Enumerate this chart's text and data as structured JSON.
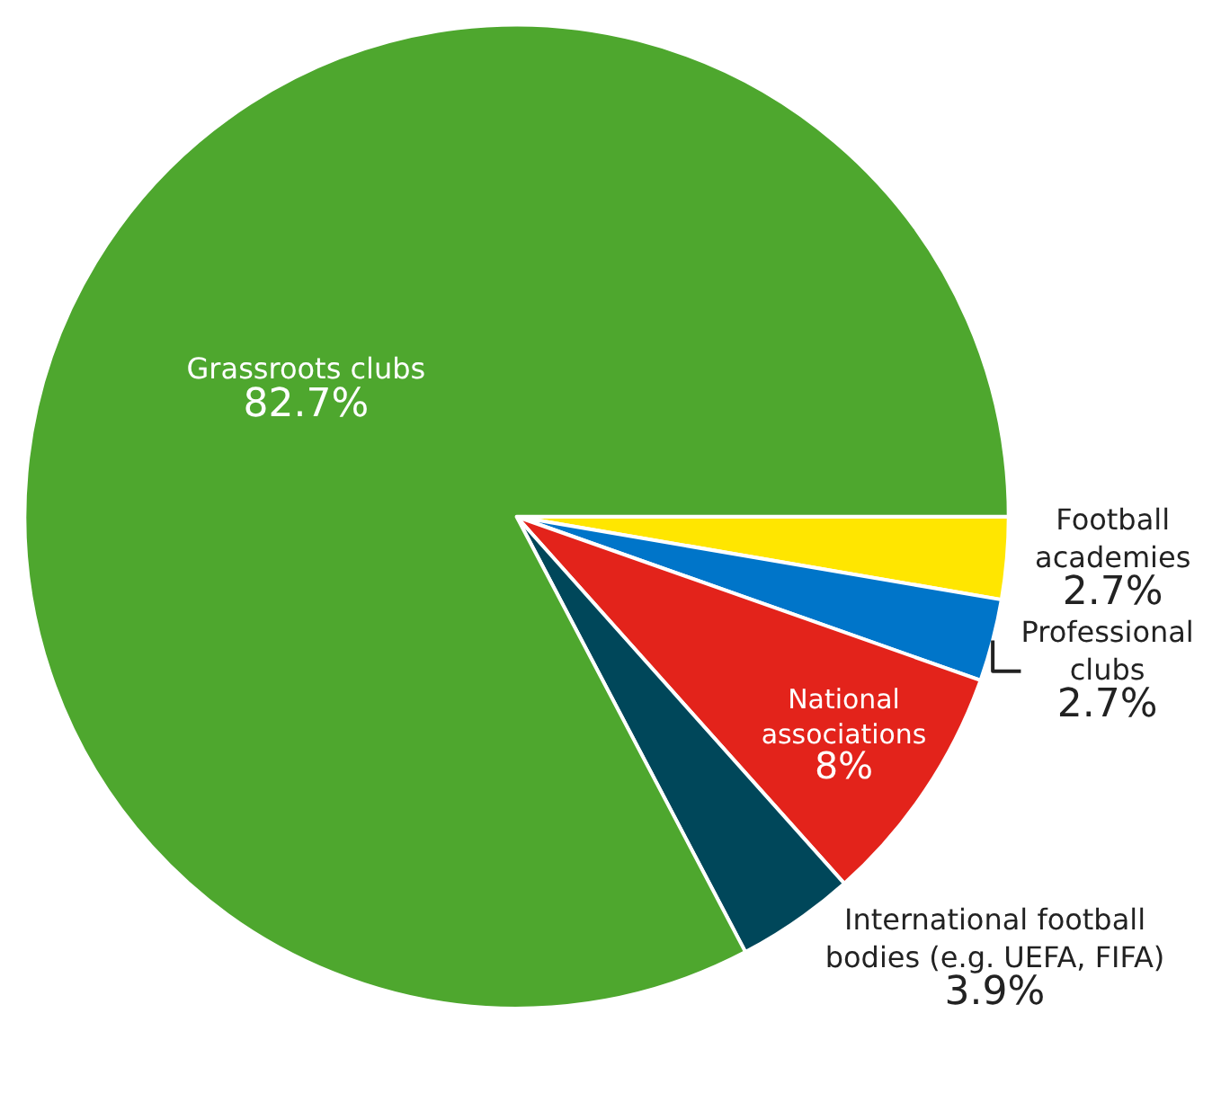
{
  "chart_data": {
    "type": "pie",
    "categories": [
      "Football\nacademies",
      "Professional\nclubs",
      "National\nassociations",
      "International football\nbodies (e.g. UEFA, FIFA)",
      "Grassroots clubs"
    ],
    "values": [
      2.7,
      2.7,
      8,
      3.9,
      82.7
    ],
    "value_labels": [
      "2.7%",
      "2.7%",
      "8%",
      "3.9%",
      "82.7%"
    ],
    "colors": [
      "#ffe600",
      "#0075c9",
      "#e3231b",
      "#00475a",
      "#4ea72e"
    ],
    "legend": false
  }
}
